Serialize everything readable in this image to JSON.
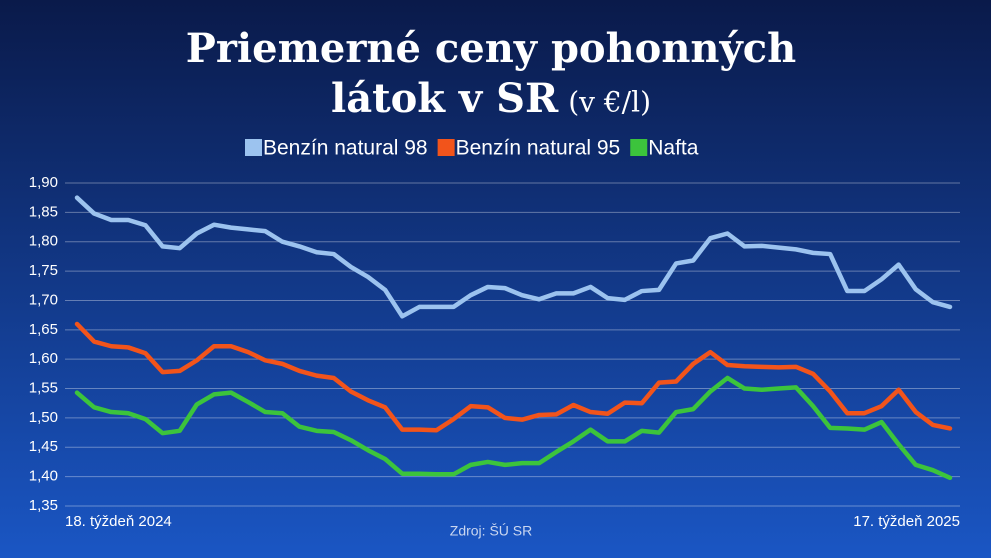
{
  "chart_data": {
    "type": "line",
    "title": "Priemerné ceny pohonných látok v SR",
    "subtitle": "(v €/l)",
    "source": "Zdroj: ŠÚ SR",
    "categories": [
      "18. týždeň 2024",
      null,
      null,
      null,
      null,
      null,
      null,
      null,
      null,
      null,
      null,
      null,
      null,
      null,
      null,
      null,
      null,
      null,
      null,
      null,
      null,
      null,
      null,
      null,
      null,
      null,
      null,
      null,
      null,
      null,
      null,
      null,
      null,
      null,
      null,
      null,
      null,
      null,
      null,
      null,
      null,
      null,
      null,
      null,
      null,
      null,
      null,
      null,
      null,
      null,
      null,
      "17. týždeň 2025"
    ],
    "series": [
      {
        "name": "Benzín natural 98",
        "color": "#9cc3ef",
        "values": [
          1.875,
          1.848,
          1.837,
          1.837,
          1.828,
          1.792,
          1.789,
          1.814,
          1.829,
          1.824,
          1.821,
          1.818,
          1.8,
          1.792,
          1.782,
          1.779,
          1.757,
          1.74,
          1.718,
          1.673,
          1.689,
          1.689,
          1.689,
          1.709,
          1.723,
          1.721,
          1.709,
          1.702,
          1.712,
          1.712,
          1.723,
          1.704,
          1.701,
          1.716,
          1.718,
          1.763,
          1.768,
          1.806,
          1.814,
          1.792,
          1.793,
          1.79,
          1.787,
          1.781,
          1.779,
          1.716,
          1.716,
          1.736,
          1.761,
          1.719,
          1.697,
          1.689
        ]
      },
      {
        "name": "Benzín natural 95",
        "color": "#f2541b",
        "values": [
          1.66,
          1.63,
          1.622,
          1.62,
          1.61,
          1.578,
          1.58,
          1.598,
          1.622,
          1.622,
          1.612,
          1.598,
          1.592,
          1.58,
          1.572,
          1.568,
          1.545,
          1.53,
          1.518,
          1.48,
          1.48,
          1.479,
          1.498,
          1.52,
          1.518,
          1.5,
          1.497,
          1.505,
          1.506,
          1.522,
          1.51,
          1.507,
          1.526,
          1.525,
          1.56,
          1.562,
          1.592,
          1.612,
          1.59,
          1.588,
          1.587,
          1.586,
          1.587,
          1.575,
          1.545,
          1.508,
          1.508,
          1.52,
          1.548,
          1.51,
          1.488,
          1.482
        ]
      },
      {
        "name": "Nafta",
        "color": "#3cc43c",
        "values": [
          1.543,
          1.518,
          1.51,
          1.508,
          1.498,
          1.474,
          1.478,
          1.523,
          1.54,
          1.543,
          1.527,
          1.51,
          1.508,
          1.485,
          1.478,
          1.476,
          1.462,
          1.445,
          1.43,
          1.405,
          1.405,
          1.404,
          1.404,
          1.42,
          1.425,
          1.42,
          1.423,
          1.423,
          1.442,
          1.46,
          1.48,
          1.46,
          1.46,
          1.478,
          1.475,
          1.51,
          1.515,
          1.545,
          1.568,
          1.55,
          1.548,
          1.55,
          1.552,
          1.52,
          1.483,
          1.482,
          1.48,
          1.493,
          1.455,
          1.42,
          1.411,
          1.398
        ]
      }
    ],
    "ylim": [
      1.35,
      1.9
    ],
    "yticks": [
      {
        "value": 1.35,
        "label": "1,35"
      },
      {
        "value": 1.4,
        "label": "1,40"
      },
      {
        "value": 1.45,
        "label": "1,45"
      },
      {
        "value": 1.5,
        "label": "1,50"
      },
      {
        "value": 1.55,
        "label": "1,55"
      },
      {
        "value": 1.6,
        "label": "1,60"
      },
      {
        "value": 1.65,
        "label": "1,65"
      },
      {
        "value": 1.7,
        "label": "1,70"
      },
      {
        "value": 1.75,
        "label": "1,75"
      },
      {
        "value": 1.8,
        "label": "1,80"
      },
      {
        "value": 1.85,
        "label": "1,85"
      },
      {
        "value": 1.9,
        "label": "1,90"
      }
    ],
    "grid": true
  }
}
